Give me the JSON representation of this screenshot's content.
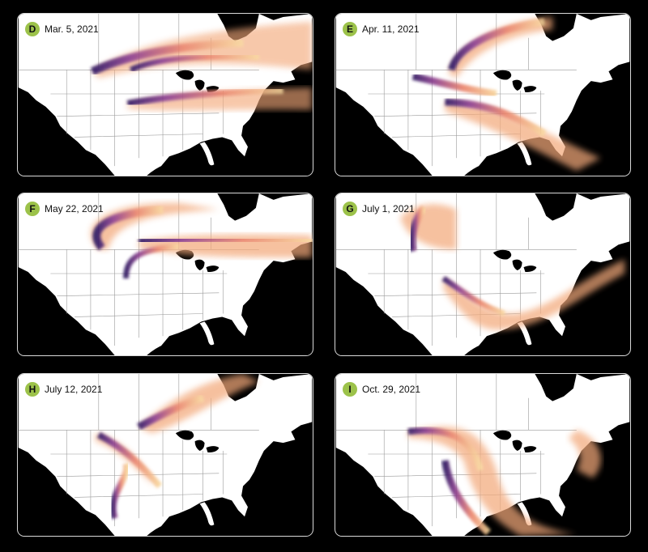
{
  "panels": [
    {
      "letter": "D",
      "date": "Mar. 5, 2021",
      "color": "#9cc24a"
    },
    {
      "letter": "E",
      "date": "Apr. 11, 2021",
      "color": "#9cc24a"
    },
    {
      "letter": "F",
      "date": "May 22, 2021",
      "color": "#9cc24a"
    },
    {
      "letter": "G",
      "date": "July 1, 2021",
      "color": "#9cc24a"
    },
    {
      "letter": "H",
      "date": "July 12, 2021",
      "color": "#9cc24a"
    },
    {
      "letter": "I",
      "date": "Oct. 29, 2021",
      "color": "#9cc24a"
    }
  ],
  "map": {
    "land_color": "#ffffff",
    "water_color": "#000000",
    "border_color": "#9a9a9a"
  },
  "plume_colors": {
    "deep": "#3a1a6e",
    "mid": "#9a3c8c",
    "warm": "#e9826a",
    "light": "#f6c98a",
    "faint": "#fbecc0"
  }
}
